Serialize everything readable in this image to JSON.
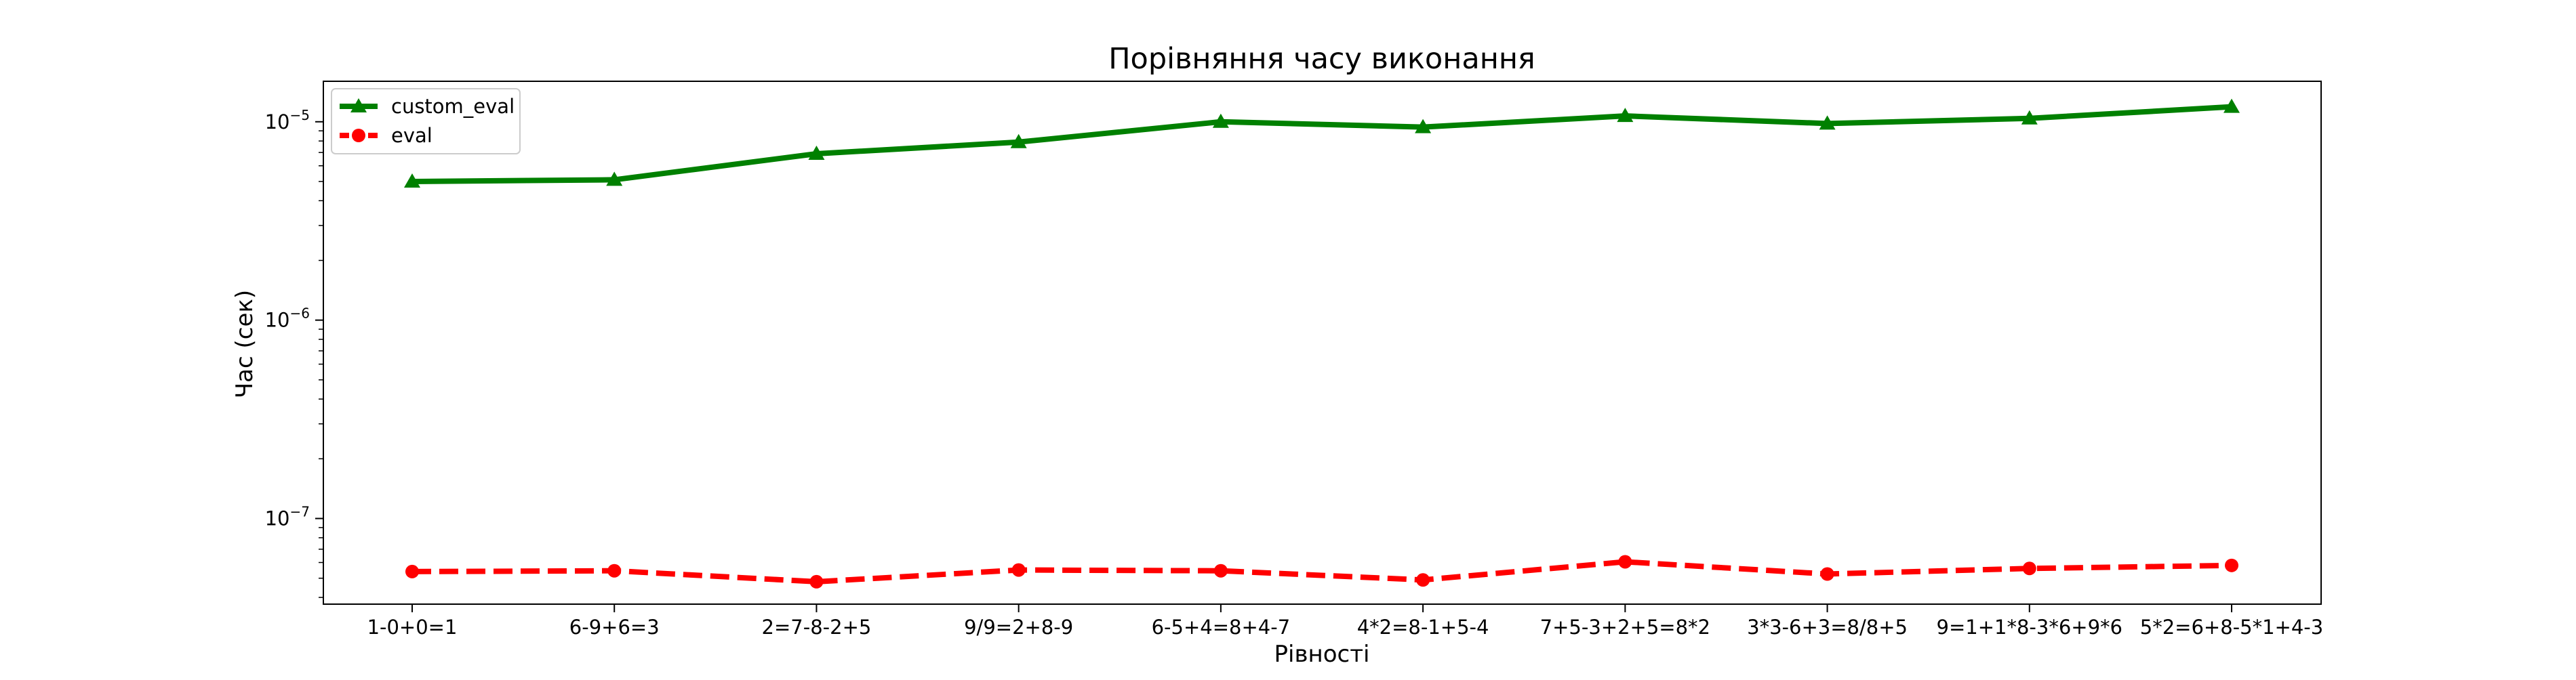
{
  "chart_data": {
    "type": "line",
    "title": "Порівняння часу виконання",
    "xlabel": "Рівності",
    "ylabel": "Час (сек)",
    "yscale": "log",
    "ylim": [
      3.7e-08,
      1.6e-05
    ],
    "grid": false,
    "legend_position": "top-left",
    "categories": [
      "1-0+0=1",
      "6-9+6=3",
      "2=7-8-2+5",
      "9/9=2+8-9",
      "6-5+4=8+4-7",
      "4*2=8-1+5-4",
      "7+5-3+2+5=8*2",
      "3*3-6+3=8/8+5",
      "9=1+1*8-3*6+9*6",
      "5*2=6+8-5*1+4-3"
    ],
    "y_ticks": [
      {
        "value": 1e-07,
        "base": "10",
        "exp": "−7"
      },
      {
        "value": 1e-06,
        "base": "10",
        "exp": "−6"
      },
      {
        "value": 1e-05,
        "base": "10",
        "exp": "−5"
      }
    ],
    "series": [
      {
        "name": "custom_eval",
        "color": "#008000",
        "marker": "triangle",
        "linestyle": "solid",
        "values": [
          5e-06,
          5.1e-06,
          6.9e-06,
          7.9e-06,
          1e-05,
          9.4e-06,
          1.07e-05,
          9.8e-06,
          1.04e-05,
          1.19e-05
        ]
      },
      {
        "name": "eval",
        "color": "#ff0000",
        "marker": "circle",
        "linestyle": "dashed",
        "values": [
          5.4e-08,
          5.45e-08,
          4.8e-08,
          5.5e-08,
          5.45e-08,
          4.9e-08,
          6.05e-08,
          5.25e-08,
          5.6e-08,
          5.8e-08
        ]
      }
    ]
  }
}
